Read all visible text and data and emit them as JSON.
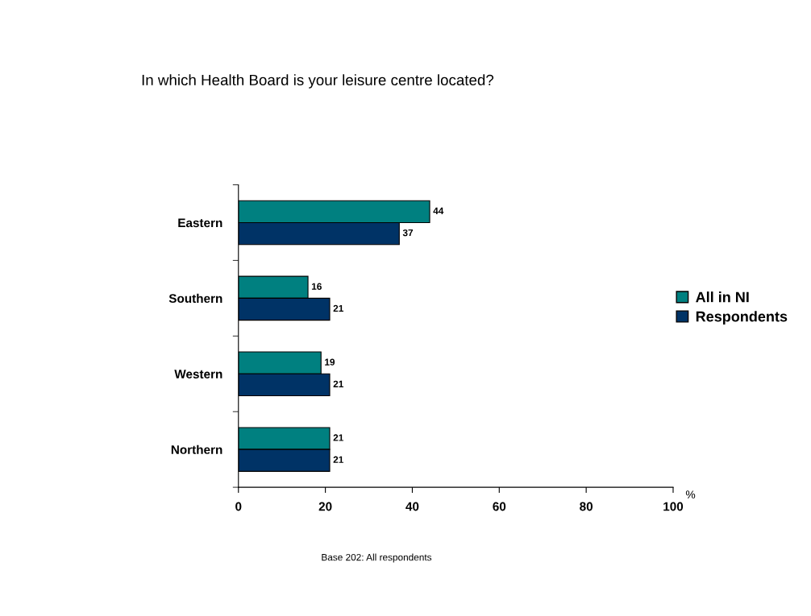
{
  "chart_data": {
    "type": "bar",
    "orientation": "horizontal",
    "title": "In which Health Board is your leisure centre located?",
    "xlabel": "%",
    "categories": [
      "Eastern",
      "Southern",
      "Western",
      "Northern"
    ],
    "series": [
      {
        "name": "All in NI",
        "color": "#008080",
        "values": [
          44,
          16,
          19,
          21
        ]
      },
      {
        "name": "Respondents",
        "color": "#003366",
        "values": [
          37,
          21,
          21,
          21
        ]
      }
    ],
    "xlim": [
      0,
      100
    ],
    "xticks": [
      0,
      20,
      40,
      60,
      80,
      100
    ],
    "data_labels": true,
    "legend": "right",
    "grid": false,
    "annotations": [
      "Base 202: All respondents"
    ]
  }
}
